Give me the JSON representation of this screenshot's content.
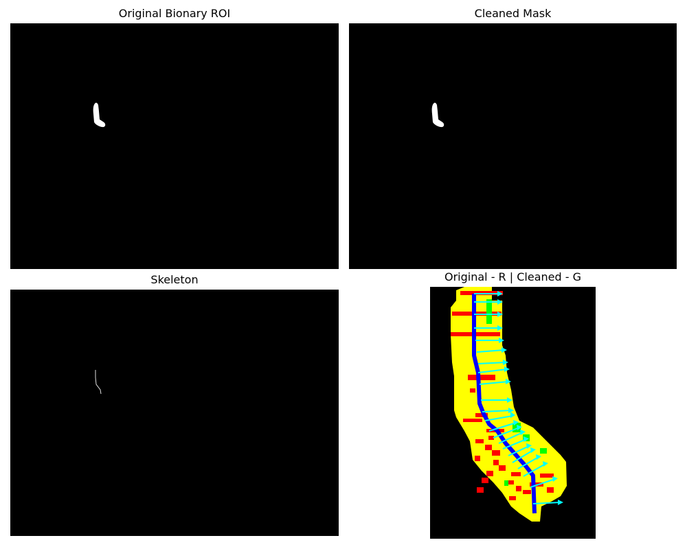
{
  "figure": {
    "panels": [
      {
        "title": "Original Bionary ROI"
      },
      {
        "title": "Cleaned Mask"
      },
      {
        "title": "Skeleton"
      },
      {
        "title": "Original - R | Cleaned - G"
      }
    ]
  },
  "colors": {
    "background": "#000000",
    "mask": "#ffffff",
    "overlap": "#ffff00",
    "original_only": "#ff0000",
    "cleaned_only": "#00ff00",
    "skeleton": "#0000ff",
    "normal_arrows": "#00ffff"
  }
}
